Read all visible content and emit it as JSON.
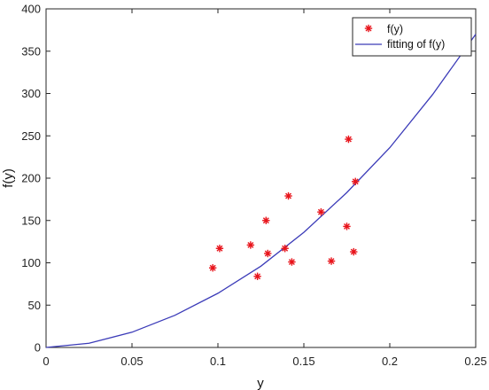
{
  "chart_data": {
    "type": "scatter",
    "title": "",
    "xlabel": "y",
    "ylabel": "f(y)",
    "xlim": [
      0,
      0.25
    ],
    "ylim": [
      0,
      400
    ],
    "xticks": [
      0,
      0.05,
      0.1,
      0.15,
      0.2,
      0.25
    ],
    "xtick_labels": [
      "0",
      "0.05",
      "0.1",
      "0.15",
      "0.2",
      "0.25"
    ],
    "yticks": [
      0,
      50,
      100,
      150,
      200,
      250,
      300,
      350,
      400
    ],
    "ytick_labels": [
      "0",
      "50",
      "100",
      "150",
      "200",
      "250",
      "300",
      "350",
      "400"
    ],
    "grid": false,
    "legend_position": "top-right",
    "series": [
      {
        "name": "f(y)",
        "kind": "scatter",
        "marker": "*",
        "color": "#e8141b",
        "points": [
          {
            "x": 0.097,
            "y": 94
          },
          {
            "x": 0.101,
            "y": 117
          },
          {
            "x": 0.119,
            "y": 121
          },
          {
            "x": 0.123,
            "y": 84
          },
          {
            "x": 0.128,
            "y": 150
          },
          {
            "x": 0.129,
            "y": 111
          },
          {
            "x": 0.139,
            "y": 117
          },
          {
            "x": 0.141,
            "y": 179
          },
          {
            "x": 0.143,
            "y": 101
          },
          {
            "x": 0.16,
            "y": 160
          },
          {
            "x": 0.166,
            "y": 102
          },
          {
            "x": 0.175,
            "y": 143
          },
          {
            "x": 0.176,
            "y": 246
          },
          {
            "x": 0.179,
            "y": 113
          },
          {
            "x": 0.18,
            "y": 196
          }
        ]
      },
      {
        "name": "fitting of f(y)",
        "kind": "line",
        "color": "#3b3bb8",
        "points": [
          {
            "x": 0,
            "y": 0
          },
          {
            "x": 0.025,
            "y": 5
          },
          {
            "x": 0.05,
            "y": 18
          },
          {
            "x": 0.075,
            "y": 38
          },
          {
            "x": 0.1,
            "y": 64
          },
          {
            "x": 0.125,
            "y": 96
          },
          {
            "x": 0.15,
            "y": 136
          },
          {
            "x": 0.175,
            "y": 183
          },
          {
            "x": 0.2,
            "y": 236
          },
          {
            "x": 0.225,
            "y": 299
          },
          {
            "x": 0.25,
            "y": 370
          }
        ]
      }
    ]
  }
}
